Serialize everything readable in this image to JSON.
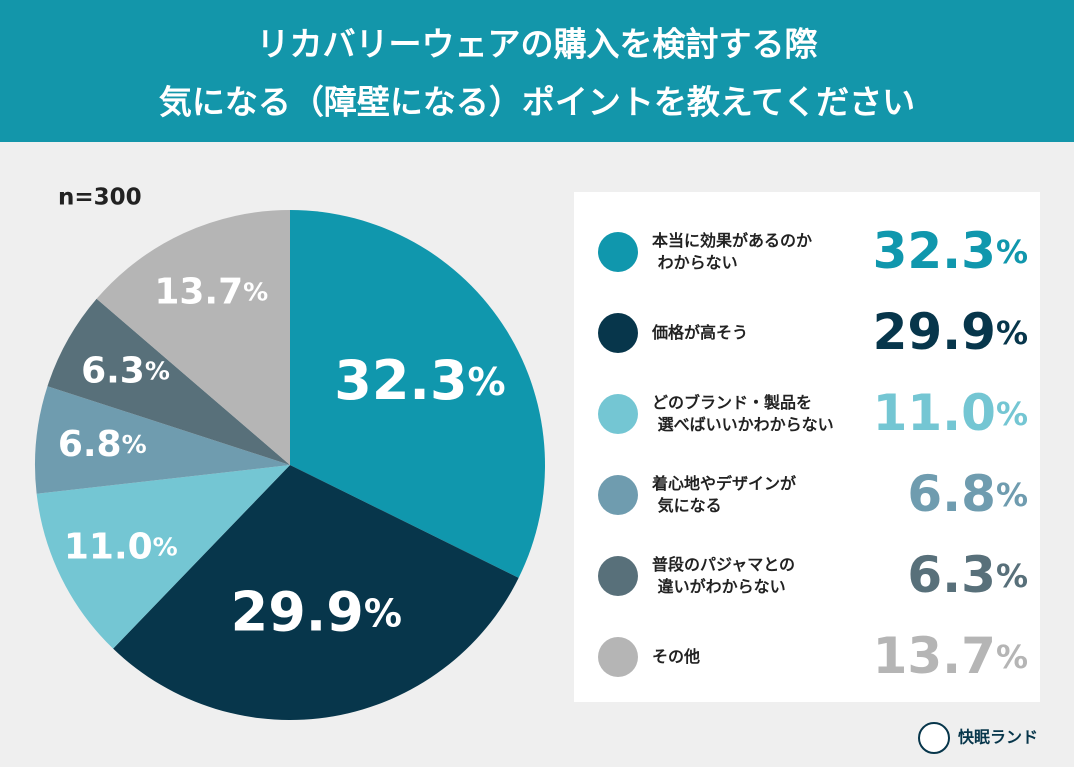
{
  "chart_data": {
    "type": "pie",
    "title": [
      "リカバリーウェアの購入を検討する際",
      "気になる（障壁になる）ポイントを教えてください"
    ],
    "note": "n=300",
    "categories": [
      "本当に効果があるのか\nわからない",
      "価格が高そう",
      "どのブランド・製品を\n選べばいいかわからない",
      "着心地やデザインが\n気になる",
      "普段のパジャマとの\n違いがわからない",
      "その他"
    ],
    "values": [
      32.3,
      29.9,
      11.0,
      6.8,
      6.3,
      13.7
    ],
    "value_labels": [
      "32.3%",
      "29.9%",
      "11.0%",
      "6.8%",
      "6.3%",
      "13.7%"
    ],
    "colors": [
      "#1097ad",
      "#07364b",
      "#74c6d3",
      "#6f9caf",
      "#58707a",
      "#b5b5b5"
    ],
    "brand": "快眠ランド"
  }
}
